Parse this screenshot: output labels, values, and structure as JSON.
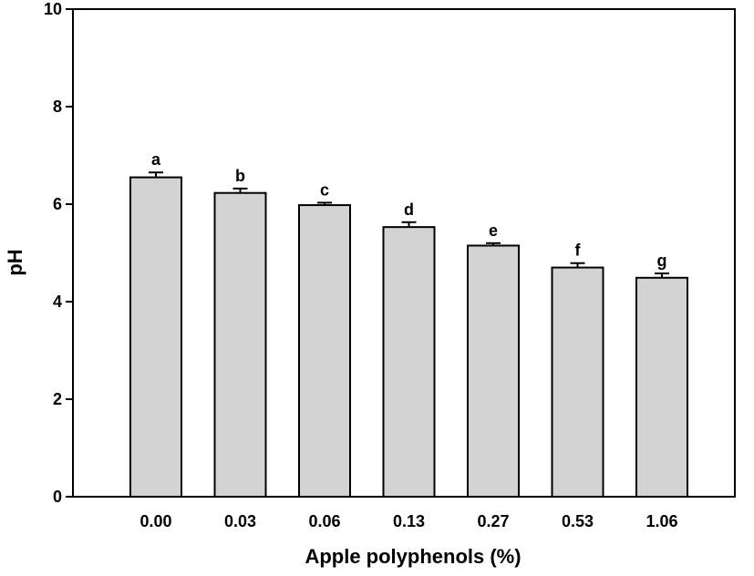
{
  "chart_data": {
    "type": "bar",
    "title": "",
    "xlabel": "Apple polyphenols (%)",
    "ylabel": "pH",
    "ylim": [
      0,
      10
    ],
    "yticks": [
      "0",
      "2",
      "4",
      "6",
      "8",
      "10"
    ],
    "categories": [
      "0.00",
      "0.03",
      "0.06",
      "0.13",
      "0.27",
      "0.53",
      "1.06"
    ],
    "values": [
      6.55,
      6.23,
      5.98,
      5.53,
      5.15,
      4.7,
      4.49
    ],
    "errors": [
      0.1,
      0.09,
      0.05,
      0.1,
      0.05,
      0.09,
      0.09
    ],
    "significance_letters": [
      "a",
      "b",
      "c",
      "d",
      "e",
      "f",
      "g"
    ],
    "grid": false,
    "colors": {
      "bar_fill": "#d3d3d3",
      "bar_stroke": "#000000"
    }
  }
}
